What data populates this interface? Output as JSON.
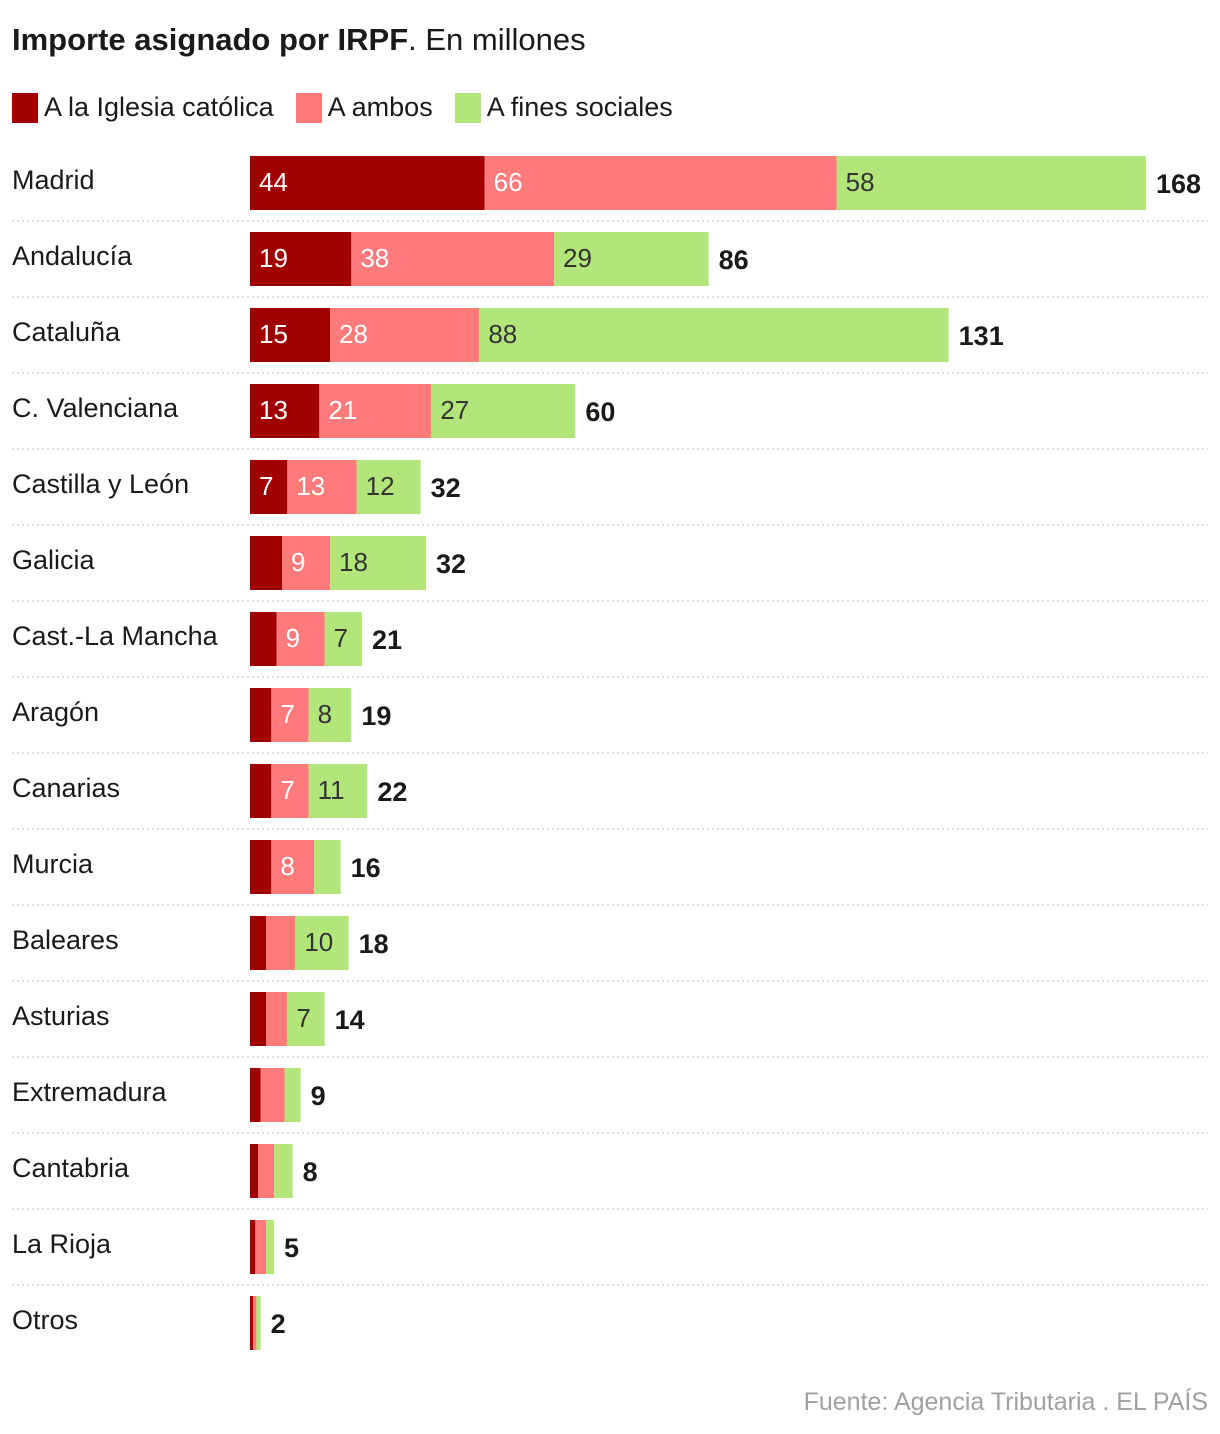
{
  "header": {
    "title_bold": "Importe asignado por IRPF",
    "title_rest": ". En millones"
  },
  "legend": [
    {
      "label": "A la Iglesia católica",
      "color": "#a00000"
    },
    {
      "label": "A ambos",
      "color": "#ff7b7b"
    },
    {
      "label": "A fines sociales",
      "color": "#b3e67a"
    }
  ],
  "colors": {
    "iglesia": "#a00000",
    "ambos": "#ff7b7b",
    "fines": "#b3e67a",
    "separator": "#cccccc"
  },
  "chart_data": {
    "type": "bar",
    "orientation": "horizontal",
    "stacked": true,
    "title": "Importe asignado por IRPF. En millones",
    "series_names": [
      "A la Iglesia católica",
      "A ambos",
      "A fines sociales"
    ],
    "categories": [
      "Madrid",
      "Andalucía",
      "Cataluña",
      "C. Valenciana",
      "Castilla y León",
      "Galicia",
      "Cast.-La Mancha",
      "Aragón",
      "Canarias",
      "Murcia",
      "Baleares",
      "Asturias",
      "Extremadura",
      "Cantabria",
      "La Rioja",
      "Otros"
    ],
    "series": [
      {
        "name": "A la Iglesia católica",
        "values": [
          44,
          19,
          15,
          13,
          7,
          6,
          5,
          4,
          4,
          4,
          3,
          3,
          2,
          1.5,
          1,
          0.6
        ]
      },
      {
        "name": "A ambos",
        "values": [
          66,
          38,
          28,
          21,
          13,
          9,
          9,
          7,
          7,
          8,
          5.5,
          4,
          4.5,
          3,
          2,
          0.6
        ]
      },
      {
        "name": "A fines sociales",
        "values": [
          58,
          29,
          88,
          27,
          12,
          18,
          7,
          8,
          11,
          5,
          10,
          7,
          3,
          3.5,
          1.5,
          0.8
        ]
      }
    ],
    "value_labels": [
      [
        "44",
        "66",
        "58"
      ],
      [
        "19",
        "38",
        "29"
      ],
      [
        "15",
        "28",
        "88"
      ],
      [
        "13",
        "21",
        "27"
      ],
      [
        "7",
        "13",
        "12"
      ],
      [
        "",
        "9",
        "18"
      ],
      [
        "",
        "9",
        "7"
      ],
      [
        "",
        "7",
        "8"
      ],
      [
        "",
        "7",
        "11"
      ],
      [
        "",
        "8",
        ""
      ],
      [
        "",
        "",
        "10"
      ],
      [
        "",
        "",
        "7"
      ],
      [
        "",
        "",
        ""
      ],
      [
        "",
        "",
        ""
      ],
      [
        "",
        "",
        ""
      ],
      [
        "",
        "",
        ""
      ]
    ],
    "totals": [
      "168",
      "86",
      "131",
      "60",
      "32",
      "32",
      "21",
      "19",
      "22",
      "16",
      "18",
      "14",
      "9",
      "8",
      "5",
      "2"
    ],
    "xlim": [
      0,
      168
    ]
  },
  "footer": {
    "source": "Fuente: Agencia Tributaria . EL PAÍS"
  }
}
